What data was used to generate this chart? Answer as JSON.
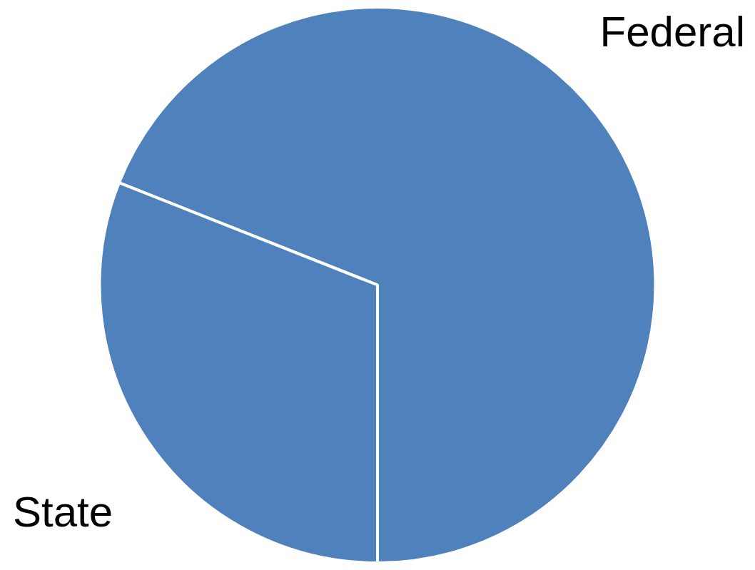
{
  "chart_data": {
    "type": "pie",
    "categories": [
      "Federal",
      "State"
    ],
    "values": [
      69,
      31
    ],
    "colors": [
      "#4f81bd",
      "#4f81bd"
    ]
  }
}
